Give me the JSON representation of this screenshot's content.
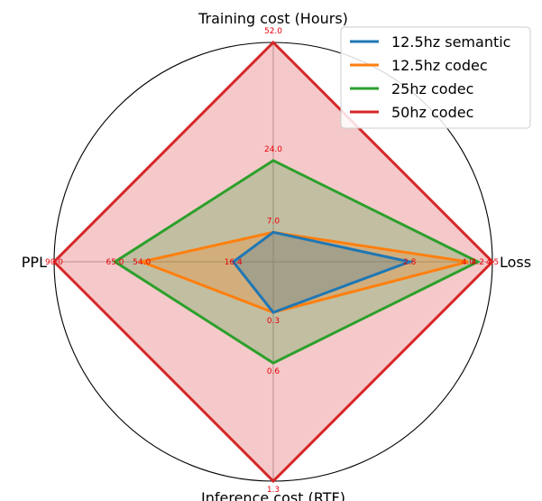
{
  "chart_data": {
    "type": "radar",
    "axes": [
      {
        "label": "Training cost (Hours)",
        "max": 52.0
      },
      {
        "label": "Loss",
        "max": 4.5
      },
      {
        "label": "Inference cost (RTF)",
        "max": 1.3
      },
      {
        "label": "PPL",
        "max": 90.0
      }
    ],
    "series": [
      {
        "name": "12.5hz semantic",
        "color": "#1f77b4",
        "values": [
          7.0,
          2.8,
          0.3,
          16.4
        ],
        "labels": [
          "7.0",
          "2.8",
          "0.3",
          "16.4"
        ]
      },
      {
        "name": "12.5hz codec",
        "color": "#ff7f0e",
        "values": [
          7.0,
          4.0,
          0.3,
          54.0
        ],
        "labels": [
          "",
          "4.0",
          "",
          "54.0"
        ]
      },
      {
        "name": "25hz codec",
        "color": "#2ca02c",
        "values": [
          24.0,
          4.2,
          0.6,
          65.0
        ],
        "labels": [
          "24.0",
          "4.2",
          "0.6",
          "65.0"
        ]
      },
      {
        "name": "50hz codec",
        "color": "#d62728",
        "values": [
          52.0,
          4.5,
          1.3,
          90.0
        ],
        "labels": [
          "52.0",
          "4.5",
          "1.3",
          "90.0"
        ]
      }
    ],
    "grid": true,
    "legend_position": "top-right",
    "fill_alpha": 0.25
  }
}
